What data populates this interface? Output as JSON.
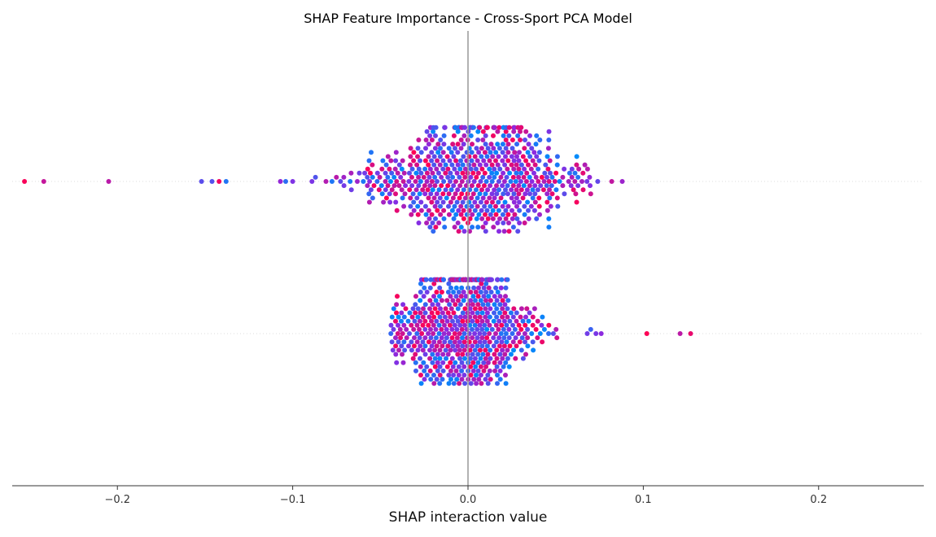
{
  "chart_data": {
    "type": "scatter",
    "subtype": "beeswarm",
    "title": "SHAP Feature Importance - Cross-Sport PCA Model",
    "xlabel": "SHAP interaction value",
    "ylabel": "",
    "xlim": [
      -0.26,
      0.26
    ],
    "x_ticks": [
      -0.2,
      -0.1,
      0.0,
      0.1,
      0.2
    ],
    "x_tick_labels": [
      "−0.2",
      "−0.1",
      "0.0",
      "0.1",
      "0.2"
    ],
    "grid": false,
    "legend": "none",
    "colors": {
      "high": "#ff0052",
      "low": "#008bfb",
      "mid": "#8a2be2",
      "zero_line": "#999999",
      "row_line": "#dddddd",
      "axis": "#333333"
    },
    "series": [
      {
        "row": 1,
        "approx_point_count": 650,
        "outlier_x": [
          -0.253,
          -0.242,
          -0.205,
          -0.152,
          -0.146,
          -0.142,
          -0.138,
          -0.107,
          -0.104,
          -0.1,
          -0.089,
          -0.087,
          -0.081,
          0.065,
          0.07,
          0.074,
          0.082,
          0.088
        ],
        "core_range": [
          -0.08,
          0.07
        ],
        "core_center": 0.003
      },
      {
        "row": 2,
        "approx_point_count": 650,
        "outlier_x": [
          -0.044,
          -0.04,
          0.068,
          0.07,
          0.073,
          0.076,
          0.102,
          0.121,
          0.127
        ],
        "core_range": [
          -0.045,
          0.055
        ],
        "core_center": -0.003
      }
    ]
  }
}
